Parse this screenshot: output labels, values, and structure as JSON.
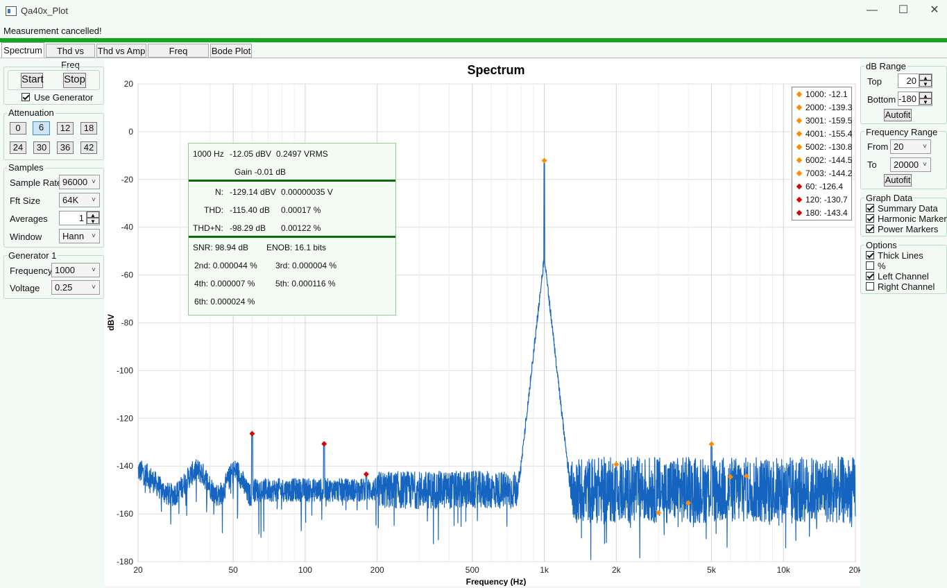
{
  "window": {
    "title": "Qa40x_Plot",
    "min": "—",
    "max": "☐",
    "close": "✕"
  },
  "status": {
    "message": "Measurement cancelled!",
    "progress": 1.0
  },
  "tabs": [
    "Spectrum",
    "Thd vs Freq",
    "Thd vs Amp",
    "Freq Response",
    "Bode Plot"
  ],
  "controls": {
    "start": "Start",
    "stop": "Stop",
    "use_generator": "Use Generator",
    "use_generator_checked": true,
    "attenuation": {
      "label": "Attenuation",
      "values": [
        "0",
        "6",
        "12",
        "18",
        "24",
        "30",
        "36",
        "42"
      ],
      "selected": "6"
    },
    "samples": {
      "label": "Samples",
      "sample_rate_label": "Sample Rate",
      "sample_rate": "96000",
      "fft_size_label": "Fft Size",
      "fft_size": "64K",
      "averages_label": "Averages",
      "averages": "1",
      "window_label": "Window",
      "window": "Hann"
    },
    "generator": {
      "label": "Generator 1",
      "frequency_label": "Frequency",
      "frequency": "1000",
      "voltage_label": "Voltage",
      "voltage": "0.25"
    }
  },
  "right": {
    "db_range": {
      "label": "dB Range",
      "top_label": "Top",
      "top": "20",
      "bottom_label": "Bottom",
      "bottom": "-180",
      "autofit": "Autofit"
    },
    "freq_range": {
      "label": "Frequency Range",
      "from_label": "From",
      "from": "20",
      "to_label": "To",
      "to": "20000",
      "autofit": "Autofit"
    },
    "graph_data": {
      "label": "Graph Data",
      "summary": "Summary Data",
      "harmonic": "Harmonic Markers",
      "power": "Power Markers"
    },
    "options": {
      "label": "Options",
      "thick": "Thick Lines",
      "percent": "%",
      "left": "Left Channel",
      "right": "Right Channel"
    }
  },
  "summary": {
    "freq": "1000 Hz",
    "level": "-12.05 dBV",
    "vrms": "0.2497 VRMS",
    "gain": "Gain -0.01 dB",
    "n_label": "N:",
    "n_db": "-129.14 dBV",
    "n_v": "0.00000035 V",
    "thd_label": "THD:",
    "thd_db": "-115.40 dB",
    "thd_pct": "0.00017 %",
    "thdn_label": "THD+N:",
    "thdn_db": "-98.29 dB",
    "thdn_pct": "0.00122 %",
    "snr": "SNR:  98.94 dB",
    "enob": "ENOB:  16.1 bits",
    "h2": "2nd:  0.000044 %",
    "h3": "3rd:  0.000004 %",
    "h4": "4th:  0.000007 %",
    "h5": "5th:  0.000116 %",
    "h6": "6th:  0.000024 %"
  },
  "colors": {
    "trace": "#1565c0",
    "harmonic": "#ff8c00",
    "power": "#e00000",
    "progress": "#16a51e"
  },
  "chart_data": {
    "type": "line",
    "title": "Spectrum",
    "xlabel": "Frequency (Hz)",
    "ylabel": "dBV",
    "xscale": "log",
    "xlim": [
      20,
      20000
    ],
    "ylim": [
      -180,
      20
    ],
    "xticks": [
      20,
      50,
      100,
      200,
      500,
      1000,
      2000,
      5000,
      10000,
      20000
    ],
    "xtick_labels": [
      "20",
      "50",
      "100",
      "200",
      "500",
      "1k",
      "2k",
      "5k",
      "10k",
      "20k"
    ],
    "yticks": [
      20,
      0,
      -20,
      -40,
      -60,
      -80,
      -100,
      -120,
      -140,
      -160,
      -180
    ],
    "grid": true,
    "series": [
      {
        "values_description": "noise floor approx -150 dBV with fundamental peak at 1000 Hz -12.1 dBV"
      }
    ],
    "harmonic_markers": [
      {
        "label": "1000: -12.1",
        "x": 1000,
        "y": -12.1
      },
      {
        "label": "2000: -139.3",
        "x": 2000,
        "y": -139.3
      },
      {
        "label": "3001: -159.5",
        "x": 3001,
        "y": -159.5
      },
      {
        "label": "4001: -155.4",
        "x": 4001,
        "y": -155.4
      },
      {
        "label": "5002: -130.8",
        "x": 5002,
        "y": -130.8
      },
      {
        "label": "6002: -144.5",
        "x": 6002,
        "y": -144.5
      },
      {
        "label": "7003: -144.2",
        "x": 7003,
        "y": -144.2
      }
    ],
    "power_markers": [
      {
        "label": "60: -126.4",
        "x": 60,
        "y": -126.4
      },
      {
        "label": "120: -130.7",
        "x": 120,
        "y": -130.7
      },
      {
        "label": "180: -143.4",
        "x": 180,
        "y": -143.4
      }
    ]
  }
}
